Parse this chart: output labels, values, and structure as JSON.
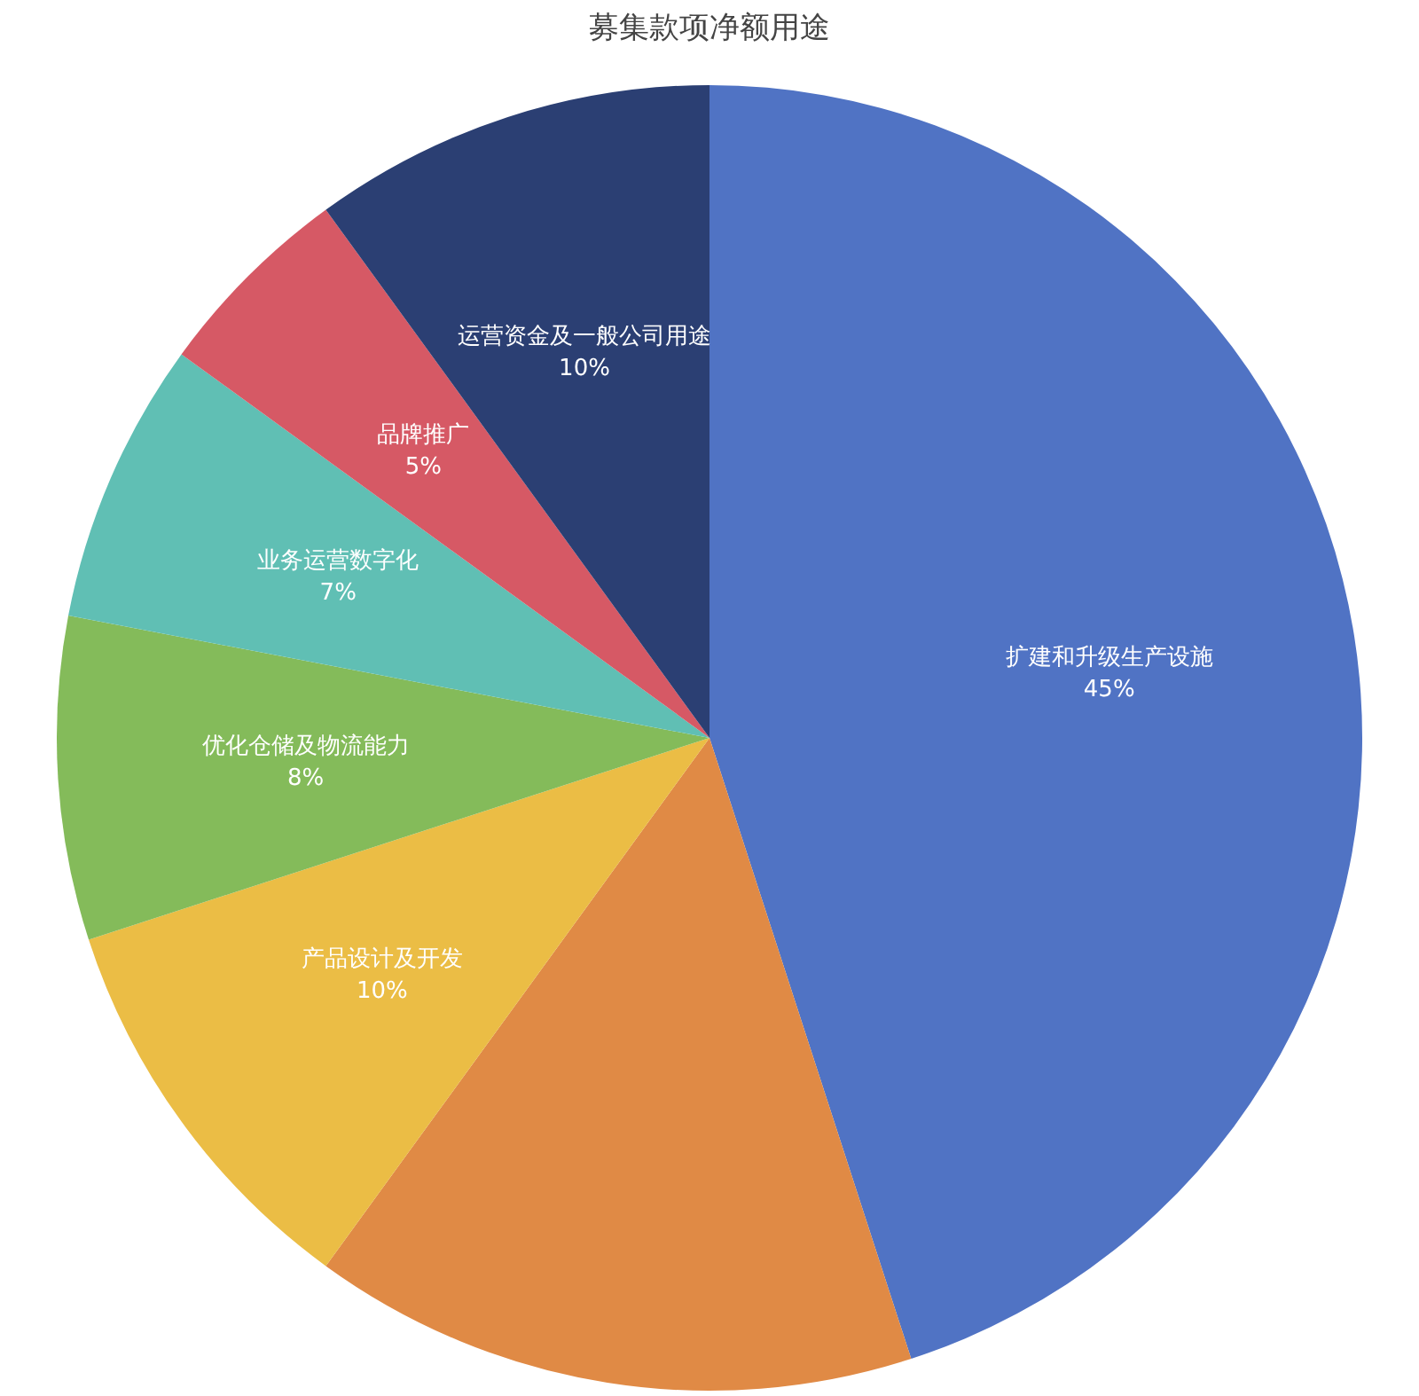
{
  "chart_data": {
    "type": "pie",
    "title": "募集款项净额用途",
    "categories": [
      "扩建和升级生产设施",
      null,
      "产品设计及开发",
      "优化仓储及物流能力",
      "业务运营数字化",
      "品牌推广",
      "运营资金及一般公司用途"
    ],
    "values": [
      45,
      15,
      10,
      8,
      7,
      5,
      10
    ],
    "value_labels": [
      "45%",
      null,
      "10%",
      "8%",
      "7%",
      "5%",
      "10%"
    ],
    "colors": [
      "#5073c4",
      "#e08a45",
      "#ebbd45",
      "#84bb5a",
      "#60bfb4",
      "#d65965",
      "#2b3f73"
    ],
    "legend": false
  }
}
